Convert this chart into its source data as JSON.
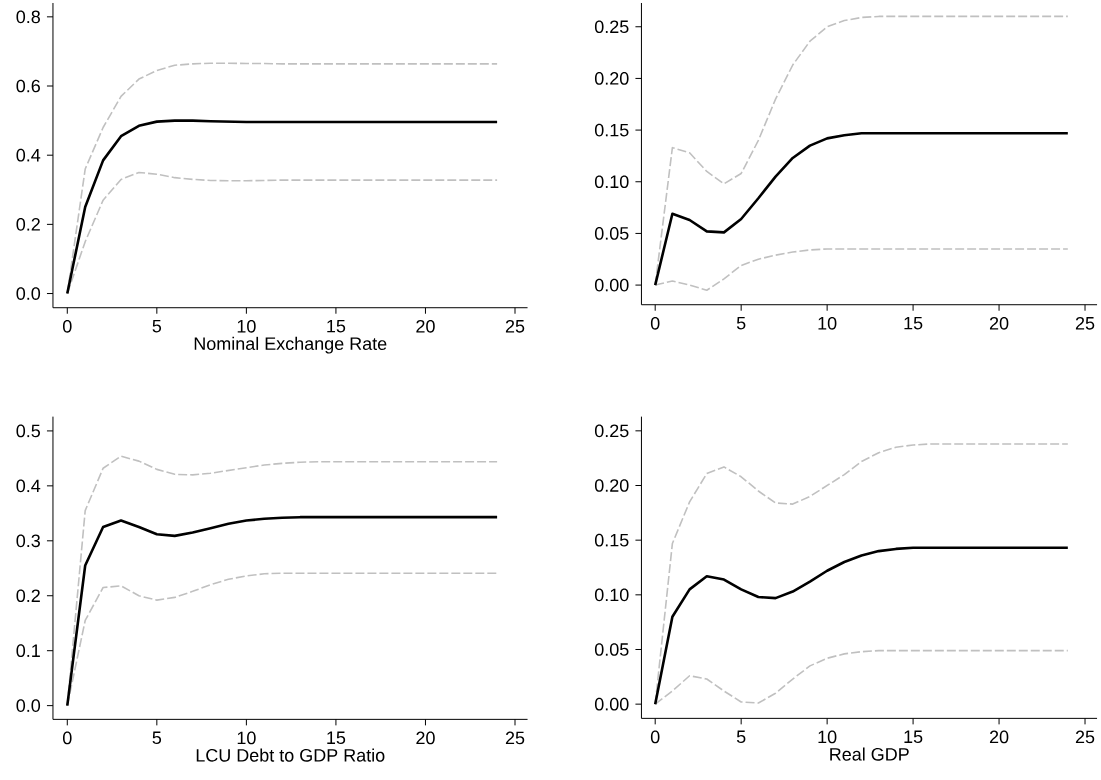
{
  "chart_data": [
    {
      "type": "line",
      "xlabel": "Nominal Exchange Rate",
      "x": [
        0,
        1,
        2,
        3,
        4,
        5,
        6,
        7,
        8,
        9,
        10,
        11,
        12,
        13,
        14,
        15,
        16,
        17,
        18,
        19,
        20,
        21,
        22,
        23,
        24
      ],
      "xlim": [
        -0.8,
        25.7
      ],
      "ylim": [
        -0.041,
        0.84
      ],
      "xticks": [
        0,
        5,
        10,
        15,
        20,
        25
      ],
      "yticks": [
        {
          "value": 0,
          "label": "0.0"
        },
        0.2,
        0.4,
        0.6,
        0.8
      ],
      "series": [
        {
          "color": "#c0c0c0",
          "line_style": "dashed",
          "values": [
            0,
            0.36,
            0.48,
            0.57,
            0.62,
            0.645,
            0.66,
            0.664,
            0.666,
            0.666,
            0.665,
            0.665,
            0.664,
            0.664,
            0.664,
            0.664,
            0.664,
            0.664,
            0.664,
            0.664,
            0.664,
            0.664,
            0.664,
            0.664,
            0.664
          ]
        },
        {
          "color": "#c0c0c0",
          "line_style": "dashed",
          "values": [
            0,
            0.15,
            0.27,
            0.33,
            0.35,
            0.345,
            0.335,
            0.33,
            0.327,
            0.326,
            0.326,
            0.327,
            0.328,
            0.328,
            0.328,
            0.328,
            0.328,
            0.328,
            0.328,
            0.328,
            0.328,
            0.328,
            0.328,
            0.328,
            0.328
          ]
        },
        {
          "color": "#000000",
          "line_style": "solid",
          "values": [
            0,
            0.25,
            0.385,
            0.455,
            0.485,
            0.497,
            0.5,
            0.5,
            0.498,
            0.497,
            0.496,
            0.496,
            0.496,
            0.496,
            0.496,
            0.496,
            0.496,
            0.496,
            0.496,
            0.496,
            0.496,
            0.496,
            0.496,
            0.496,
            0.496
          ]
        }
      ]
    },
    {
      "type": "line",
      "x": [
        0,
        1,
        2,
        3,
        4,
        5,
        6,
        7,
        8,
        9,
        10,
        11,
        12,
        13,
        14,
        15,
        16,
        17,
        18,
        19,
        20,
        21,
        22,
        23,
        24
      ],
      "xlim": [
        -0.8,
        25.7
      ],
      "ylim": [
        -0.019,
        0.273
      ],
      "xticks": [
        0,
        5,
        10,
        15,
        20,
        25
      ],
      "yticks": [
        {
          "value": 0,
          "label": "0.00"
        },
        0.05,
        {
          "value": 0.1,
          "label": "0.10"
        },
        0.15,
        {
          "value": 0.2,
          "label": "0.20"
        },
        0.25
      ],
      "series": [
        {
          "color": "#c0c0c0",
          "line_style": "dashed",
          "values": [
            0,
            0.133,
            0.128,
            0.11,
            0.098,
            0.108,
            0.14,
            0.18,
            0.213,
            0.236,
            0.25,
            0.256,
            0.259,
            0.26,
            0.26,
            0.26,
            0.26,
            0.26,
            0.26,
            0.26,
            0.26,
            0.26,
            0.26,
            0.26,
            0.26
          ]
        },
        {
          "color": "#c0c0c0",
          "line_style": "dashed",
          "values": [
            0,
            0.004,
            0.0,
            -0.005,
            0.006,
            0.019,
            0.025,
            0.029,
            0.032,
            0.034,
            0.035,
            0.035,
            0.035,
            0.035,
            0.035,
            0.035,
            0.035,
            0.035,
            0.035,
            0.035,
            0.035,
            0.035,
            0.035,
            0.035,
            0.035
          ]
        },
        {
          "color": "#000000",
          "line_style": "solid",
          "values": [
            0,
            0.069,
            0.063,
            0.052,
            0.051,
            0.064,
            0.084,
            0.105,
            0.123,
            0.135,
            0.142,
            0.145,
            0.147,
            0.147,
            0.147,
            0.147,
            0.147,
            0.147,
            0.147,
            0.147,
            0.147,
            0.147,
            0.147,
            0.147,
            0.147
          ]
        }
      ]
    },
    {
      "type": "line",
      "xlabel": "LCU Debt to GDP Ratio",
      "x": [
        0,
        1,
        2,
        3,
        4,
        5,
        6,
        7,
        8,
        9,
        10,
        11,
        12,
        13,
        14,
        15,
        16,
        17,
        18,
        19,
        20,
        21,
        22,
        23,
        24
      ],
      "xlim": [
        -0.8,
        25.7
      ],
      "ylim": [
        -0.025,
        0.526
      ],
      "xticks": [
        0,
        5,
        10,
        15,
        20,
        25
      ],
      "yticks": [
        {
          "value": 0,
          "label": "0.0"
        },
        0.1,
        0.2,
        0.3,
        0.4,
        0.5
      ],
      "series": [
        {
          "color": "#c0c0c0",
          "line_style": "dashed",
          "values": [
            0,
            0.355,
            0.432,
            0.454,
            0.445,
            0.43,
            0.421,
            0.42,
            0.423,
            0.428,
            0.433,
            0.438,
            0.441,
            0.443,
            0.444,
            0.444,
            0.444,
            0.444,
            0.444,
            0.444,
            0.444,
            0.444,
            0.444,
            0.444,
            0.444
          ]
        },
        {
          "color": "#c0c0c0",
          "line_style": "dashed",
          "values": [
            0,
            0.155,
            0.215,
            0.218,
            0.2,
            0.192,
            0.197,
            0.208,
            0.22,
            0.23,
            0.236,
            0.24,
            0.241,
            0.241,
            0.241,
            0.241,
            0.241,
            0.241,
            0.241,
            0.241,
            0.241,
            0.241,
            0.241,
            0.241,
            0.241
          ]
        },
        {
          "color": "#000000",
          "line_style": "solid",
          "values": [
            0,
            0.255,
            0.325,
            0.337,
            0.325,
            0.312,
            0.309,
            0.315,
            0.323,
            0.331,
            0.337,
            0.34,
            0.342,
            0.343,
            0.343,
            0.343,
            0.343,
            0.343,
            0.343,
            0.343,
            0.343,
            0.343,
            0.343,
            0.343,
            0.343
          ]
        }
      ]
    },
    {
      "type": "line",
      "xlabel": "Real GDP",
      "x": [
        0,
        1,
        2,
        3,
        4,
        5,
        6,
        7,
        8,
        9,
        10,
        11,
        12,
        13,
        14,
        15,
        16,
        17,
        18,
        19,
        20,
        21,
        22,
        23,
        24
      ],
      "xlim": [
        -0.8,
        25.7
      ],
      "ylim": [
        -0.013,
        0.263
      ],
      "xticks": [
        0,
        5,
        10,
        15,
        20,
        25
      ],
      "yticks": [
        {
          "value": 0,
          "label": "0.00"
        },
        0.05,
        {
          "value": 0.1,
          "label": "0.10"
        },
        0.15,
        {
          "value": 0.2,
          "label": "0.20"
        },
        0.25
      ],
      "series": [
        {
          "color": "#c0c0c0",
          "line_style": "dashed",
          "values": [
            0,
            0.147,
            0.185,
            0.211,
            0.217,
            0.208,
            0.195,
            0.184,
            0.183,
            0.19,
            0.2,
            0.21,
            0.222,
            0.23,
            0.235,
            0.237,
            0.238,
            0.238,
            0.238,
            0.238,
            0.238,
            0.238,
            0.238,
            0.238,
            0.238
          ]
        },
        {
          "color": "#c0c0c0",
          "line_style": "dashed",
          "values": [
            0,
            0.012,
            0.026,
            0.023,
            0.012,
            0.002,
            0.001,
            0.01,
            0.023,
            0.035,
            0.042,
            0.046,
            0.048,
            0.049,
            0.049,
            0.049,
            0.049,
            0.049,
            0.049,
            0.049,
            0.049,
            0.049,
            0.049,
            0.049,
            0.049
          ]
        },
        {
          "color": "#000000",
          "line_style": "solid",
          "values": [
            0,
            0.08,
            0.105,
            0.117,
            0.114,
            0.105,
            0.098,
            0.097,
            0.103,
            0.112,
            0.122,
            0.13,
            0.136,
            0.14,
            0.142,
            0.143,
            0.143,
            0.143,
            0.143,
            0.143,
            0.143,
            0.143,
            0.143,
            0.143,
            0.143
          ]
        }
      ]
    }
  ]
}
